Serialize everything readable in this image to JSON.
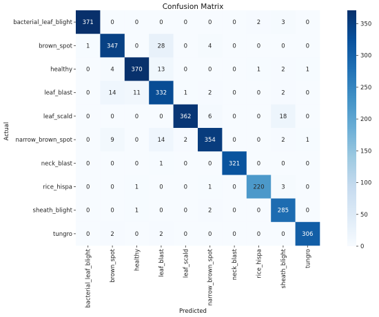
{
  "chart_data": {
    "type": "heatmap",
    "title": "Confusion Matrix",
    "xlabel": "Predicted",
    "ylabel": "Actual",
    "x_categories": [
      "bacterial_leaf_blight",
      "brown_spot",
      "healthy",
      "leaf_blast",
      "leaf_scald",
      "narrow_brown_spot",
      "neck_blast",
      "rice_hispa",
      "sheath_blight",
      "tungro"
    ],
    "y_categories": [
      "bacterial_leaf_blight",
      "brown_spot",
      "healthy",
      "leaf_blast",
      "leaf_scald",
      "narrow_brown_spot",
      "neck_blast",
      "rice_hispa",
      "sheath_blight",
      "tungro"
    ],
    "values": [
      [
        371,
        0,
        0,
        0,
        0,
        0,
        0,
        2,
        3,
        0
      ],
      [
        1,
        347,
        0,
        28,
        0,
        4,
        0,
        0,
        0,
        0
      ],
      [
        0,
        4,
        370,
        13,
        0,
        0,
        0,
        1,
        2,
        1
      ],
      [
        0,
        14,
        11,
        332,
        1,
        2,
        0,
        0,
        2,
        0
      ],
      [
        0,
        0,
        0,
        0,
        362,
        6,
        0,
        0,
        18,
        0
      ],
      [
        0,
        9,
        0,
        14,
        2,
        354,
        0,
        0,
        2,
        1
      ],
      [
        0,
        0,
        0,
        1,
        0,
        0,
        321,
        0,
        0,
        0
      ],
      [
        0,
        0,
        1,
        0,
        0,
        1,
        0,
        220,
        3,
        0
      ],
      [
        0,
        0,
        1,
        0,
        0,
        2,
        0,
        0,
        285,
        0
      ],
      [
        0,
        2,
        0,
        2,
        0,
        0,
        0,
        0,
        0,
        306
      ]
    ],
    "colorbar": {
      "min": 0,
      "max": 371,
      "ticks": [
        0,
        50,
        100,
        150,
        200,
        250,
        300,
        350
      ],
      "colormap": "Blues",
      "low_color": "#f7fbff",
      "high_color": "#08306b"
    }
  }
}
